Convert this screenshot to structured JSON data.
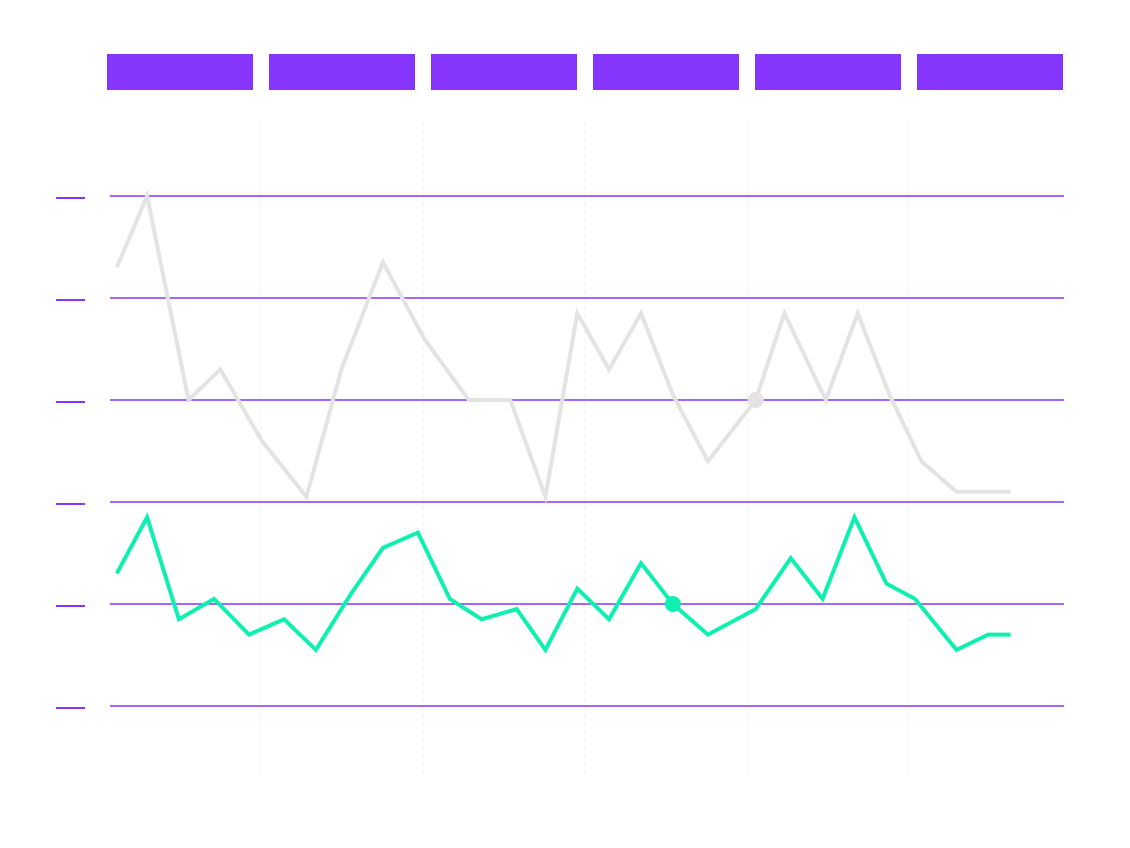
{
  "colors": {
    "background": "#ffffff",
    "accent": "#8635fc",
    "primary_series": "#0ef0b0",
    "secondary_series": "#e3e3e3",
    "vertical_grid": "#ececec"
  },
  "chart_data": {
    "type": "line",
    "title": "",
    "xlabel": "",
    "ylabel": "",
    "grid": {
      "horizontal": true,
      "vertical": true,
      "vertical_style": "dashed"
    },
    "legend": "none",
    "header_bands": 6,
    "y_ticks": [
      0,
      1,
      2,
      3,
      4,
      5
    ],
    "ylim": [
      0,
      5
    ],
    "xlim": [
      0,
      30
    ],
    "series": [
      {
        "key": "gray",
        "color": "#e3e3e3",
        "highlight_index": 17,
        "x": [
          0.15,
          1.1,
          2.4,
          3.4,
          4.7,
          6.1,
          7.2,
          8.5,
          9.8,
          11.2,
          12.5,
          13.6,
          14.6,
          15.6,
          16.6,
          17.6,
          18.7,
          20.2,
          21.1,
          22.4,
          23.4,
          24.4,
          25.4,
          26.5,
          27.2,
          28.2
        ],
        "y": [
          4.3,
          5.0,
          3.0,
          3.3,
          2.6,
          2.05,
          3.3,
          4.35,
          3.6,
          3.0,
          3.0,
          2.05,
          3.85,
          3.3,
          3.85,
          3.05,
          2.4,
          3.0,
          3.85,
          3.0,
          3.85,
          3.05,
          2.4,
          2.1,
          2.1,
          2.1
        ]
      },
      {
        "key": "green",
        "color": "#0ef0b0",
        "highlight_index": 17,
        "x": [
          0.15,
          1.1,
          2.1,
          3.2,
          4.3,
          5.4,
          6.4,
          7.5,
          8.5,
          9.6,
          10.6,
          11.6,
          12.7,
          13.6,
          14.6,
          15.6,
          16.6,
          17.6,
          18.7,
          20.2,
          21.3,
          22.3,
          23.3,
          24.3,
          25.2,
          26.5,
          27.5,
          28.2
        ],
        "y": [
          1.3,
          1.85,
          0.85,
          1.05,
          0.7,
          0.85,
          0.55,
          1.1,
          1.55,
          1.7,
          1.05,
          0.85,
          0.95,
          0.55,
          1.15,
          0.85,
          1.4,
          1.0,
          0.7,
          0.95,
          1.45,
          1.05,
          1.85,
          1.2,
          1.05,
          0.55,
          0.7,
          0.7
        ]
      }
    ]
  }
}
